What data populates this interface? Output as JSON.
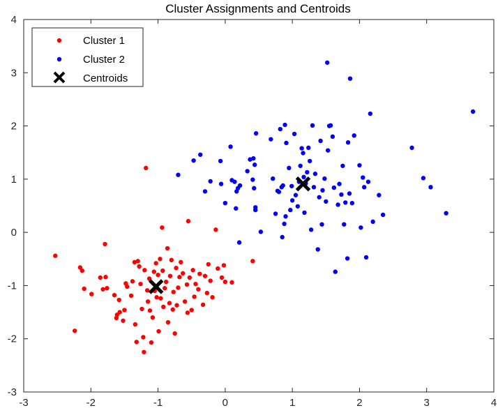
{
  "chart_data": {
    "type": "scatter",
    "title": "Cluster Assignments and Centroids",
    "xlabel": "",
    "ylabel": "",
    "xlim": [
      -3,
      4
    ],
    "ylim": [
      -3,
      4
    ],
    "xticks": [
      "-3",
      "-2",
      "-1",
      "0",
      "1",
      "2",
      "3",
      "4"
    ],
    "yticks": [
      "-3",
      "-2",
      "-1",
      "0",
      "1",
      "2",
      "3",
      "4"
    ],
    "grid": false,
    "legend_position": "top-left",
    "series": [
      {
        "name": "Cluster 1",
        "color": "#ff0000",
        "marker": "dot",
        "points": [
          [
            -2.53,
            -0.44
          ],
          [
            -2.24,
            -1.85
          ],
          [
            -2.16,
            -0.66
          ],
          [
            -2.13,
            -0.72
          ],
          [
            -2.1,
            -1.06
          ],
          [
            -1.99,
            -1.16
          ],
          [
            -1.86,
            -0.85
          ],
          [
            -1.82,
            -1.07
          ],
          [
            -1.79,
            -0.22
          ],
          [
            -1.78,
            -0.84
          ],
          [
            -1.76,
            -1.05
          ],
          [
            -1.65,
            -1.18
          ],
          [
            -1.62,
            -1.61
          ],
          [
            -1.61,
            -1.55
          ],
          [
            -1.58,
            -1.27
          ],
          [
            -1.57,
            -1.5
          ],
          [
            -1.52,
            -1.66
          ],
          [
            -1.5,
            -1.46
          ],
          [
            -1.48,
            -0.96
          ],
          [
            -1.46,
            -1.02
          ],
          [
            -1.4,
            -1.19
          ],
          [
            -1.38,
            -0.92
          ],
          [
            -1.35,
            -0.56
          ],
          [
            -1.34,
            -1.73
          ],
          [
            -1.32,
            -2.06
          ],
          [
            -1.3,
            -0.54
          ],
          [
            -1.28,
            -0.64
          ],
          [
            -1.26,
            -0.97
          ],
          [
            -1.24,
            -1.44
          ],
          [
            -1.22,
            -1.97
          ],
          [
            -1.21,
            -2.25
          ],
          [
            -1.2,
            -0.71
          ],
          [
            -1.18,
            1.21
          ],
          [
            -1.16,
            -1.09
          ],
          [
            -1.15,
            -1.3
          ],
          [
            -1.13,
            -0.87
          ],
          [
            -1.12,
            -1.47
          ],
          [
            -1.1,
            -2.07
          ],
          [
            -1.08,
            -1.6
          ],
          [
            -1.06,
            -0.74
          ],
          [
            -1.05,
            -1.1
          ],
          [
            -1.03,
            -0.58
          ],
          [
            -1.02,
            -1.22
          ],
          [
            -1.0,
            -0.8
          ],
          [
            -0.99,
            -1.86
          ],
          [
            -0.97,
            -0.5
          ],
          [
            -0.96,
            -1.24
          ],
          [
            -0.94,
            0.09
          ],
          [
            -0.93,
            -0.72
          ],
          [
            -0.92,
            -1.4
          ],
          [
            -0.9,
            -1.05
          ],
          [
            -0.88,
            -0.93
          ],
          [
            -0.86,
            -0.3
          ],
          [
            -0.85,
            -1.69
          ],
          [
            -0.83,
            -1.33
          ],
          [
            -0.82,
            -0.82
          ],
          [
            -0.8,
            -0.52
          ],
          [
            -0.78,
            -1.45
          ],
          [
            -0.77,
            -1.12
          ],
          [
            -0.75,
            -1.9
          ],
          [
            -0.73,
            -0.67
          ],
          [
            -0.72,
            -1.37
          ],
          [
            -0.7,
            -1.04
          ],
          [
            -0.68,
            -0.84
          ],
          [
            -0.66,
            -0.56
          ],
          [
            -0.63,
            -0.77
          ],
          [
            -0.6,
            -1.3
          ],
          [
            -0.57,
            -0.98
          ],
          [
            -0.56,
            -1.51
          ],
          [
            -0.55,
            0.21
          ],
          [
            -0.53,
            -0.85
          ],
          [
            -0.5,
            -1.46
          ],
          [
            -0.48,
            -0.71
          ],
          [
            -0.46,
            -1.21
          ],
          [
            -0.44,
            -0.97
          ],
          [
            -0.4,
            -1.07
          ],
          [
            -0.38,
            -0.78
          ],
          [
            -0.33,
            -1.36
          ],
          [
            -0.3,
            -0.82
          ],
          [
            -0.27,
            -1.14
          ],
          [
            -0.25,
            -0.6
          ],
          [
            -0.22,
            -0.91
          ],
          [
            -0.19,
            -1.22
          ],
          [
            -0.14,
            0.05
          ],
          [
            -0.11,
            -0.68
          ],
          [
            -0.05,
            -0.85
          ],
          [
            -0.02,
            -0.62
          ],
          [
            0.0,
            -0.93
          ],
          [
            0.1,
            -0.94
          ],
          [
            0.41,
            -0.54
          ]
        ]
      },
      {
        "name": "Cluster 2",
        "color": "#0000ff",
        "marker": "dot",
        "points": [
          [
            -0.7,
            1.08
          ],
          [
            -0.47,
            1.35
          ],
          [
            -0.37,
            1.46
          ],
          [
            -0.3,
            0.77
          ],
          [
            -0.22,
            0.96
          ],
          [
            -0.07,
            1.34
          ],
          [
            -0.06,
            0.91
          ],
          [
            0.0,
            0.55
          ],
          [
            0.08,
            1.61
          ],
          [
            0.1,
            0.98
          ],
          [
            0.14,
            0.95
          ],
          [
            0.16,
            0.45
          ],
          [
            0.17,
            0.77
          ],
          [
            0.19,
            0.83
          ],
          [
            0.21,
            -0.19
          ],
          [
            0.22,
            0.88
          ],
          [
            0.33,
            1.15
          ],
          [
            0.37,
            1.37
          ],
          [
            0.42,
            1.39
          ],
          [
            0.41,
            0.99
          ],
          [
            0.43,
            0.83
          ],
          [
            0.44,
            1.27
          ],
          [
            0.45,
            0.47
          ],
          [
            0.46,
            1.86
          ],
          [
            0.45,
            0.42
          ],
          [
            0.53,
            0.01
          ],
          [
            0.68,
            1.75
          ],
          [
            0.71,
            1.01
          ],
          [
            0.75,
            0.35
          ],
          [
            0.78,
            0.78
          ],
          [
            0.8,
            0.76
          ],
          [
            0.82,
            1.94
          ],
          [
            0.84,
            0.85
          ],
          [
            0.85,
            -0.09
          ],
          [
            0.86,
            0.88
          ],
          [
            0.88,
            0.16
          ],
          [
            0.89,
            2.02
          ],
          [
            0.9,
            0.3
          ],
          [
            0.91,
            1.68
          ],
          [
            0.95,
            1.21
          ],
          [
            0.97,
            0.42
          ],
          [
            0.99,
            0.87
          ],
          [
            1.0,
            0.6
          ],
          [
            1.03,
            1.85
          ],
          [
            1.05,
            0.7
          ],
          [
            1.08,
            0.49
          ],
          [
            1.1,
            0.95
          ],
          [
            1.12,
            1.25
          ],
          [
            1.14,
            1.58
          ],
          [
            1.16,
            1.49
          ],
          [
            1.17,
            1.04
          ],
          [
            1.18,
            0.37
          ],
          [
            1.2,
            0.92
          ],
          [
            1.22,
            1.13
          ],
          [
            1.24,
            1.59
          ],
          [
            1.26,
            1.34
          ],
          [
            1.28,
            0.05
          ],
          [
            1.3,
            2.01
          ],
          [
            1.32,
            0.85
          ],
          [
            1.34,
            1.1
          ],
          [
            1.38,
            -0.32
          ],
          [
            1.4,
            0.66
          ],
          [
            1.42,
            1.72
          ],
          [
            1.44,
            0.15
          ],
          [
            1.45,
            0.79
          ],
          [
            1.48,
            1.01
          ],
          [
            1.5,
            0.58
          ],
          [
            1.52,
            3.19
          ],
          [
            1.53,
            1.54
          ],
          [
            1.55,
            2.0
          ],
          [
            1.57,
            2.01
          ],
          [
            1.6,
            1.8
          ],
          [
            1.62,
            0.84
          ],
          [
            1.64,
            -0.74
          ],
          [
            1.68,
            0.52
          ],
          [
            1.7,
            0.91
          ],
          [
            1.73,
            0.71
          ],
          [
            1.75,
            1.25
          ],
          [
            1.77,
            0.15
          ],
          [
            1.79,
            0.56
          ],
          [
            1.82,
            -0.49
          ],
          [
            1.83,
            1.69
          ],
          [
            1.85,
            0.73
          ],
          [
            1.86,
            2.89
          ],
          [
            1.89,
            0.55
          ],
          [
            1.92,
            1.82
          ],
          [
            2.0,
            1.26
          ],
          [
            2.02,
            0.09
          ],
          [
            2.05,
            1.03
          ],
          [
            2.07,
            0.85
          ],
          [
            2.1,
            -0.47
          ],
          [
            2.13,
            0.95
          ],
          [
            2.16,
            2.23
          ],
          [
            2.2,
            0.2
          ],
          [
            2.29,
            0.7
          ],
          [
            2.35,
            0.33
          ],
          [
            2.78,
            1.59
          ],
          [
            2.95,
            1.02
          ],
          [
            3.06,
            0.85
          ],
          [
            3.29,
            0.36
          ],
          [
            3.69,
            2.27
          ]
        ]
      },
      {
        "name": "Centroids",
        "color": "#000000",
        "marker": "x",
        "points": [
          [
            -1.03,
            -1.02
          ],
          [
            1.16,
            0.91
          ]
        ]
      }
    ]
  }
}
